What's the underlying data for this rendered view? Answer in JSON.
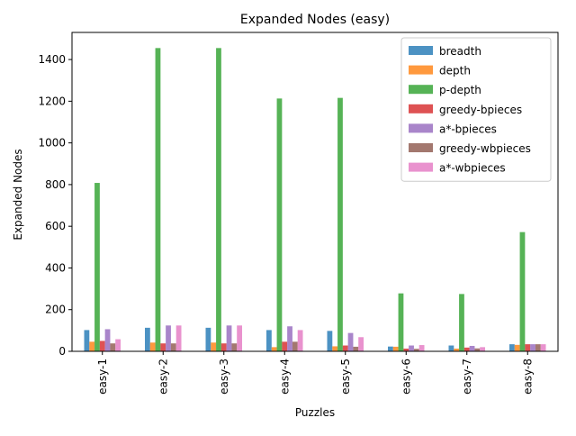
{
  "chart_data": {
    "type": "bar",
    "title": "Expanded Nodes (easy)",
    "xlabel": "Puzzles",
    "ylabel": "Expanded Nodes",
    "categories": [
      "easy-1",
      "easy-2",
      "easy-3",
      "easy-4",
      "easy-5",
      "easy-6",
      "easy-7",
      "easy-8"
    ],
    "ylim": [
      0,
      1530
    ],
    "yticks": [
      0,
      200,
      400,
      600,
      800,
      1000,
      1200,
      1400
    ],
    "grid": false,
    "legend_position": "top-right",
    "series": [
      {
        "name": "breadth",
        "color": "#1f77b4",
        "values": [
          102,
          113,
          113,
          102,
          98,
          23,
          28,
          34
        ]
      },
      {
        "name": "depth",
        "color": "#ff7f0e",
        "values": [
          46,
          42,
          42,
          20,
          24,
          22,
          13,
          31
        ]
      },
      {
        "name": "p-depth",
        "color": "#2ca02c",
        "values": [
          808,
          1455,
          1455,
          1213,
          1216,
          278,
          275,
          572
        ]
      },
      {
        "name": "greedy-bpieces",
        "color": "#d62728",
        "values": [
          50,
          38,
          38,
          46,
          28,
          13,
          18,
          34
        ]
      },
      {
        "name": "a*-bpieces",
        "color": "#9467bd",
        "values": [
          106,
          124,
          124,
          120,
          88,
          28,
          26,
          34
        ]
      },
      {
        "name": "greedy-wbpieces",
        "color": "#8c564b",
        "values": [
          38,
          38,
          38,
          46,
          22,
          12,
          14,
          34
        ]
      },
      {
        "name": "a*-wbpieces",
        "color": "#e377c2",
        "values": [
          58,
          124,
          124,
          102,
          68,
          30,
          20,
          34
        ]
      }
    ]
  }
}
